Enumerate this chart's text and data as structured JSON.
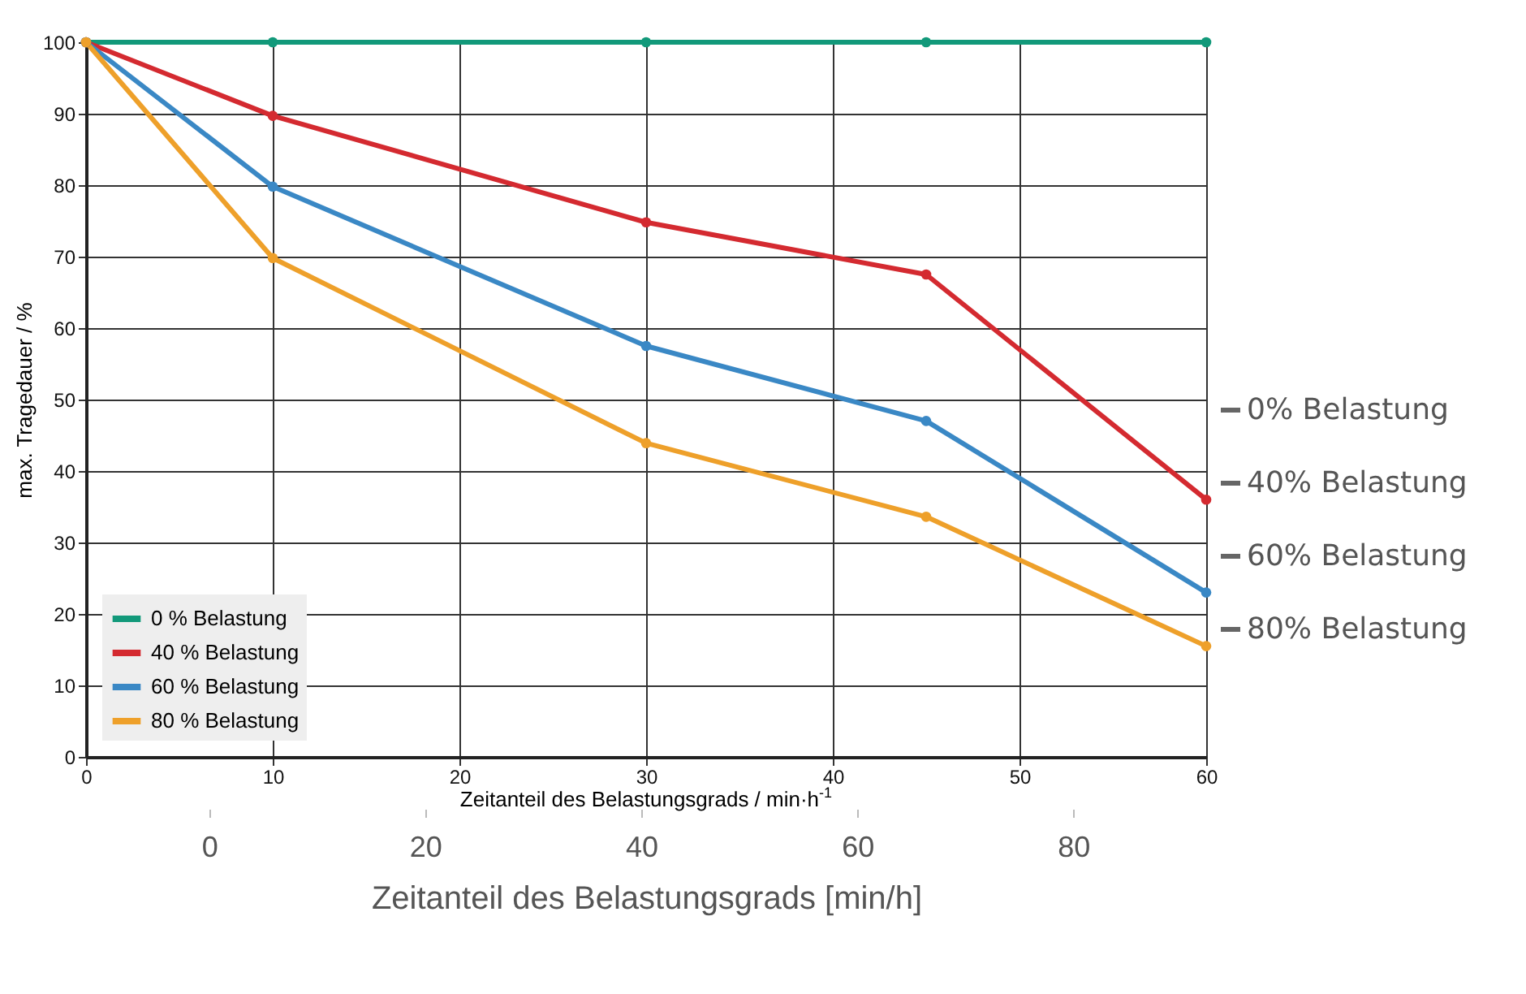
{
  "chart_data": {
    "type": "line",
    "xlabel": "Zeitanteil des Belastungsgrads / min·h$^{-1}$",
    "ylabel": "max. Tragedauer / %",
    "x": [
      0,
      10,
      30,
      45,
      60
    ],
    "series": [
      {
        "name": "0 % Belastung",
        "color": "#12997a",
        "values": [
          100,
          100,
          100,
          100,
          100
        ]
      },
      {
        "name": "40 % Belastung",
        "color": "#d42a30",
        "values": [
          100,
          89.7,
          74.8,
          67.5,
          36
        ]
      },
      {
        "name": "60 % Belastung",
        "color": "#3a88c5",
        "values": [
          100,
          79.8,
          57.5,
          47,
          23
        ]
      },
      {
        "name": "80 % Belastung",
        "color": "#eea02a",
        "values": [
          100,
          69.8,
          43.9,
          33.6,
          15.5
        ]
      }
    ],
    "xlim": [
      0,
      60
    ],
    "xticks": [
      0,
      10,
      20,
      30,
      40,
      50,
      60
    ],
    "ylim": [
      0,
      100
    ],
    "yticks": [
      0,
      10,
      20,
      30,
      40,
      50,
      60,
      70,
      80,
      90,
      100
    ],
    "x2lim": [
      -11.4,
      92.3
    ],
    "x2ticks": [
      0,
      20,
      40,
      60,
      80
    ],
    "x2label": "Zeitanteil des Belastungsgrads [min/h]",
    "annotations": [
      "0% Belastung",
      "40% Belastung",
      "60% Belastung",
      "80% Belastung"
    ],
    "grid": true,
    "legend": "bottom left",
    "marker": "circle",
    "line_style": "solid"
  }
}
